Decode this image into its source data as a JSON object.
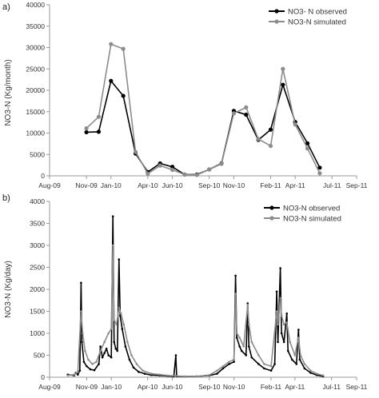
{
  "colors": {
    "observed": "#000000",
    "simulated": "#8c8c8c",
    "axis": "#999999"
  },
  "chart_data": [
    {
      "type": "line",
      "panel_label": "a)",
      "ylabel": "NO3-N (Kg/month)",
      "xlabel": "",
      "ylim": [
        0,
        40000
      ],
      "yticks": [
        0,
        5000,
        10000,
        15000,
        20000,
        25000,
        30000,
        35000,
        40000
      ],
      "xlim": [
        0,
        25
      ],
      "xticks": [
        {
          "x": 0,
          "label": "Aug-09"
        },
        {
          "x": 3,
          "label": "Nov-09"
        },
        {
          "x": 5,
          "label": "Jan-10"
        },
        {
          "x": 8,
          "label": "Apr-10"
        },
        {
          "x": 10,
          "label": "Jun-10"
        },
        {
          "x": 13,
          "label": "Sep-10"
        },
        {
          "x": 15,
          "label": "Nov-10"
        },
        {
          "x": 18,
          "label": "Feb-11"
        },
        {
          "x": 20,
          "label": "Apr-11"
        },
        {
          "x": 23,
          "label": "Jul-11"
        },
        {
          "x": 25,
          "label": "Sep-11"
        }
      ],
      "grid": false,
      "legend_position": "top-right",
      "series": [
        {
          "name": "NO3- N observed",
          "color": "#000000",
          "points": [
            [
              3,
              10200
            ],
            [
              4,
              10300
            ],
            [
              5,
              22200
            ],
            [
              6,
              18700
            ],
            [
              7,
              5200
            ],
            [
              8,
              900
            ],
            [
              9,
              2900
            ],
            [
              10,
              2100
            ],
            [
              11,
              300
            ],
            [
              12,
              300
            ],
            [
              13,
              1500
            ],
            [
              14,
              2900
            ],
            [
              15,
              15200
            ],
            [
              16,
              14300
            ],
            [
              17,
              8400
            ],
            [
              18,
              10800
            ],
            [
              19,
              21300
            ],
            [
              20,
              12600
            ],
            [
              21,
              7600
            ],
            [
              22,
              1900
            ]
          ]
        },
        {
          "name": "NO3-N simulated",
          "color": "#8c8c8c",
          "points": [
            [
              3,
              11100
            ],
            [
              4,
              13800
            ],
            [
              5,
              30800
            ],
            [
              6,
              29700
            ],
            [
              7,
              5600
            ],
            [
              8,
              500
            ],
            [
              9,
              2400
            ],
            [
              10,
              1400
            ],
            [
              11,
              300
            ],
            [
              12,
              200
            ],
            [
              13,
              1500
            ],
            [
              14,
              2800
            ],
            [
              15,
              14600
            ],
            [
              16,
              16000
            ],
            [
              17,
              8600
            ],
            [
              18,
              7000
            ],
            [
              19,
              25000
            ],
            [
              20,
              12000
            ],
            [
              21,
              6400
            ],
            [
              22,
              600
            ]
          ]
        }
      ]
    },
    {
      "type": "line",
      "panel_label": "b)",
      "ylabel": "NO3-N (Kg/day)",
      "xlabel": "",
      "ylim": [
        0,
        4000
      ],
      "yticks": [
        0,
        500,
        1000,
        1500,
        2000,
        2500,
        3000,
        3500,
        4000
      ],
      "xlim": [
        "2009-08-01",
        "2011-09-01"
      ],
      "xticks": [
        {
          "date": "2009-08-01",
          "label": "Aug-09"
        },
        {
          "date": "2009-11-01",
          "label": "Nov-09"
        },
        {
          "date": "2010-01-01",
          "label": "Jan-10"
        },
        {
          "date": "2010-04-01",
          "label": "Apr-10"
        },
        {
          "date": "2010-06-01",
          "label": "Jun-10"
        },
        {
          "date": "2010-09-01",
          "label": "Sep-10"
        },
        {
          "date": "2010-11-01",
          "label": "Nov-10"
        },
        {
          "date": "2011-02-01",
          "label": "Feb-11"
        },
        {
          "date": "2011-04-01",
          "label": "Apr-11"
        },
        {
          "date": "2011-07-01",
          "label": "Jul-11"
        },
        {
          "date": "2011-09-01",
          "label": "Sep-11"
        }
      ],
      "grid": false,
      "legend_position": "top-right",
      "series": [
        {
          "name": "NO3-N observed",
          "color": "#000000",
          "points": [
            [
              "2009-09-15",
              60
            ],
            [
              "2009-10-01",
              40
            ],
            [
              "2009-10-05",
              100
            ],
            [
              "2009-10-10",
              60
            ],
            [
              "2009-10-15",
              150
            ],
            [
              "2009-10-18",
              2150
            ],
            [
              "2009-10-20",
              800
            ],
            [
              "2009-10-25",
              350
            ],
            [
              "2009-11-01",
              250
            ],
            [
              "2009-11-10",
              180
            ],
            [
              "2009-11-20",
              160
            ],
            [
              "2009-12-01",
              300
            ],
            [
              "2009-12-05",
              700
            ],
            [
              "2009-12-10",
              450
            ],
            [
              "2009-12-15",
              550
            ],
            [
              "2009-12-20",
              650
            ],
            [
              "2009-12-25",
              500
            ],
            [
              "2010-01-01",
              450
            ],
            [
              "2010-01-05",
              3660
            ],
            [
              "2010-01-08",
              800
            ],
            [
              "2010-01-12",
              650
            ],
            [
              "2010-01-16",
              600
            ],
            [
              "2010-01-20",
              2680
            ],
            [
              "2010-01-23",
              1400
            ],
            [
              "2010-01-28",
              1100
            ],
            [
              "2010-02-05",
              700
            ],
            [
              "2010-02-15",
              400
            ],
            [
              "2010-02-25",
              220
            ],
            [
              "2010-03-10",
              120
            ],
            [
              "2010-03-25",
              80
            ],
            [
              "2010-04-10",
              50
            ],
            [
              "2010-05-01",
              40
            ],
            [
              "2010-05-20",
              30
            ],
            [
              "2010-06-05",
              20
            ],
            [
              "2010-06-10",
              500
            ],
            [
              "2010-06-12",
              20
            ],
            [
              "2010-07-01",
              15
            ],
            [
              "2010-08-01",
              20
            ],
            [
              "2010-09-01",
              40
            ],
            [
              "2010-09-20",
              80
            ],
            [
              "2010-10-05",
              200
            ],
            [
              "2010-10-20",
              300
            ],
            [
              "2010-11-01",
              350
            ],
            [
              "2010-11-05",
              2310
            ],
            [
              "2010-11-08",
              900
            ],
            [
              "2010-11-15",
              700
            ],
            [
              "2010-11-20",
              600
            ],
            [
              "2010-12-01",
              500
            ],
            [
              "2010-12-05",
              1680
            ],
            [
              "2010-12-08",
              700
            ],
            [
              "2010-12-15",
              450
            ],
            [
              "2011-01-01",
              300
            ],
            [
              "2011-01-15",
              200
            ],
            [
              "2011-02-01",
              150
            ],
            [
              "2011-02-10",
              300
            ],
            [
              "2011-02-15",
              1950
            ],
            [
              "2011-02-18",
              800
            ],
            [
              "2011-02-24",
              2480
            ],
            [
              "2011-02-27",
              1000
            ],
            [
              "2011-03-05",
              800
            ],
            [
              "2011-03-12",
              1450
            ],
            [
              "2011-03-15",
              600
            ],
            [
              "2011-03-25",
              400
            ],
            [
              "2011-04-05",
              300
            ],
            [
              "2011-04-10",
              1080
            ],
            [
              "2011-04-13",
              400
            ],
            [
              "2011-04-25",
              200
            ],
            [
              "2011-05-10",
              100
            ],
            [
              "2011-05-25",
              50
            ],
            [
              "2011-06-10",
              20
            ]
          ]
        },
        {
          "name": "NO3-N simulated",
          "color": "#8c8c8c",
          "points": [
            [
              "2009-09-15",
              40
            ],
            [
              "2009-10-01",
              60
            ],
            [
              "2009-10-10",
              120
            ],
            [
              "2009-10-18",
              1500
            ],
            [
              "2009-10-22",
              1000
            ],
            [
              "2009-10-28",
              600
            ],
            [
              "2009-11-05",
              400
            ],
            [
              "2009-11-15",
              300
            ],
            [
              "2009-11-25",
              350
            ],
            [
              "2009-12-05",
              600
            ],
            [
              "2009-12-15",
              800
            ],
            [
              "2009-12-25",
              1000
            ],
            [
              "2010-01-01",
              1100
            ],
            [
              "2010-01-05",
              3000
            ],
            [
              "2010-01-08",
              1300
            ],
            [
              "2010-01-14",
              1200
            ],
            [
              "2010-01-20",
              1580
            ],
            [
              "2010-01-25",
              1450
            ],
            [
              "2010-02-01",
              1200
            ],
            [
              "2010-02-10",
              800
            ],
            [
              "2010-02-20",
              500
            ],
            [
              "2010-03-05",
              300
            ],
            [
              "2010-03-20",
              150
            ],
            [
              "2010-04-10",
              80
            ],
            [
              "2010-05-01",
              60
            ],
            [
              "2010-05-20",
              40
            ],
            [
              "2010-06-10",
              30
            ],
            [
              "2010-07-01",
              20
            ],
            [
              "2010-08-01",
              20
            ],
            [
              "2010-09-01",
              50
            ],
            [
              "2010-09-20",
              150
            ],
            [
              "2010-10-05",
              250
            ],
            [
              "2010-10-20",
              350
            ],
            [
              "2010-11-01",
              400
            ],
            [
              "2010-11-05",
              1900
            ],
            [
              "2010-11-08",
              1000
            ],
            [
              "2010-11-15",
              900
            ],
            [
              "2010-11-25",
              700
            ],
            [
              "2010-12-05",
              1650
            ],
            [
              "2010-12-08",
              1200
            ],
            [
              "2010-12-15",
              800
            ],
            [
              "2011-01-01",
              500
            ],
            [
              "2011-01-15",
              300
            ],
            [
              "2011-02-01",
              250
            ],
            [
              "2011-02-15",
              1500
            ],
            [
              "2011-02-18",
              1200
            ],
            [
              "2011-02-24",
              1800
            ],
            [
              "2011-02-27",
              1400
            ],
            [
              "2011-03-05",
              1200
            ],
            [
              "2011-03-12",
              1250
            ],
            [
              "2011-03-20",
              800
            ],
            [
              "2011-04-01",
              500
            ],
            [
              "2011-04-10",
              900
            ],
            [
              "2011-04-15",
              500
            ],
            [
              "2011-04-25",
              300
            ],
            [
              "2011-05-10",
              150
            ],
            [
              "2011-05-25",
              80
            ],
            [
              "2011-06-10",
              40
            ]
          ]
        }
      ]
    }
  ]
}
